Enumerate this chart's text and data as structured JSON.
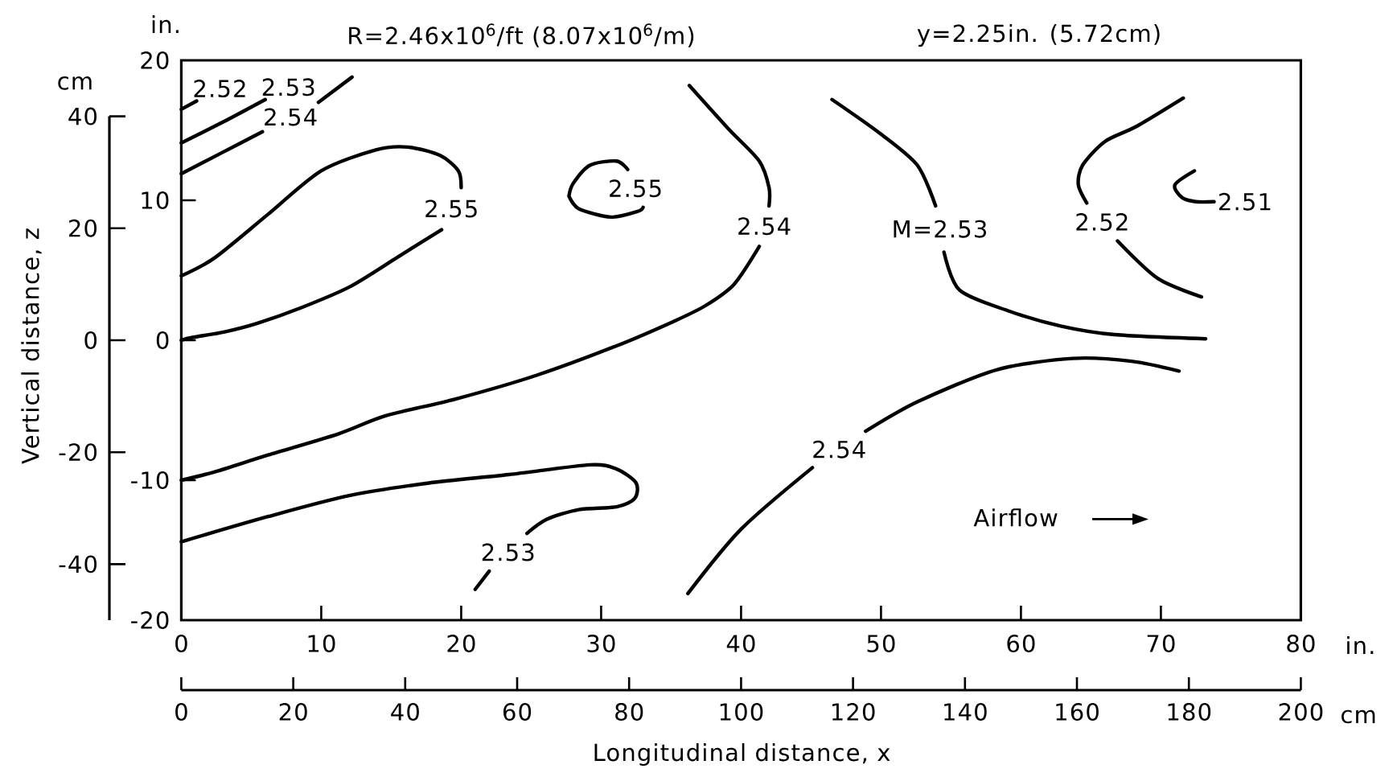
{
  "chart_data": {
    "type": "line",
    "title": "R=2.46x10$^{6}$/ft (8.07x10$^{6}$/m)",
    "subtitle": "y=2.25in. (5.72cm)",
    "xlabel": "Longitudinal distance, x",
    "y2label": "Vertical distance, z",
    "xlim": [
      0,
      80
    ],
    "xticks": [
      0,
      10,
      20,
      30,
      40,
      50,
      60,
      70,
      80
    ],
    "ylim": [
      -20,
      20
    ],
    "yticks": [
      -20,
      -10,
      0,
      10,
      20
    ],
    "x2lim": [
      0,
      200
    ],
    "x2ticks": [
      0,
      20,
      40,
      60,
      80,
      100,
      120,
      140,
      160,
      180,
      200
    ],
    "y2lim": [
      -50,
      40
    ],
    "y2ticks": [
      -40,
      -20,
      0,
      20,
      40
    ],
    "series": [
      {
        "name": "2.52",
        "color": "#000000",
        "x": [
          0,
          1.1
        ],
        "values": [
          16.5,
          17.1
        ]
      },
      {
        "name": "2.53",
        "color": "#000000",
        "x": [
          0,
          3.0,
          6.0
        ],
        "values": [
          14.1,
          15.6,
          17.2
        ]
      },
      {
        "name": "2.54",
        "color": "#000000",
        "x": [
          0,
          2.9,
          5.8,
          7.8,
          9.8,
          12.2
        ],
        "values": [
          11.9,
          13.4,
          14.9,
          null,
          17.0,
          18.8
        ]
      },
      {
        "name": "2.55",
        "color": "#000000",
        "x": [
          0,
          2.4,
          6.2,
          10.0,
          13.9,
          16.2,
          18.5,
          19.8,
          20.0,
          19.3,
          18.6,
          15.4,
          12.0,
          8.5,
          5.4,
          3.1,
          0.8,
          0
        ],
        "values": [
          4.6,
          5.9,
          9.0,
          12.1,
          13.6,
          13.8,
          13.2,
          12.1,
          10.9,
          null,
          7.9,
          5.9,
          3.8,
          2.3,
          1.2,
          0.6,
          0.2,
          0
        ]
      },
      {
        "name": "2.55",
        "color": "#000000",
        "x": [
          27.7,
          28.0,
          29.2,
          31.1,
          31.9,
          32.4,
          33.0,
          32.6,
          30.7,
          28.4,
          27.7
        ],
        "values": [
          10.3,
          11.2,
          12.5,
          12.8,
          12.2,
          null,
          9.5,
          9.2,
          8.8,
          9.4,
          10.3
        ]
      },
      {
        "name": "2.54",
        "color": "#000000",
        "x": [
          36.3,
          39.1,
          41.3,
          42.0,
          42.0,
          41.6,
          41.3,
          39.5,
          37.5,
          35.3,
          31.1,
          25.4,
          19.6,
          14.6,
          11.2,
          6.2,
          2.4,
          0
        ],
        "values": [
          18.2,
          15.1,
          12.8,
          10.9,
          9.6,
          null,
          6.7,
          4.0,
          2.5,
          1.4,
          -0.4,
          -2.5,
          -4.2,
          -5.4,
          -6.7,
          -8.2,
          -9.4,
          -10
        ]
      },
      {
        "name": "2.53",
        "color": "#000000",
        "x": [
          0,
          6.2,
          12.0,
          17.7,
          23.4,
          29.2,
          31.1,
          32.5,
          32.4,
          31.1,
          28.4,
          26.1,
          24.7,
          23.3,
          22.0,
          21.0
        ],
        "values": [
          -14.4,
          -12.6,
          -11.1,
          -10.2,
          -9.6,
          -8.9,
          -9.2,
          -10.2,
          -11.3,
          -11.9,
          -12.1,
          -12.8,
          -13.8,
          null,
          -16.5,
          -17.8
        ]
      },
      {
        "name": "2.54",
        "color": "#000000",
        "x": [
          36.2,
          40.0,
          45.1,
          47.0,
          48.9,
          52.6,
          58.3,
          63.7,
          67.9,
          71.3
        ],
        "values": [
          -18.1,
          -13.5,
          -9.1,
          null,
          -6.5,
          -4.4,
          -2.1,
          -1.3,
          -1.5,
          -2.2
        ]
      },
      {
        "name": "M=2.53",
        "color": "#000000",
        "x": [
          46.5,
          49.9,
          52.6,
          53.9,
          54.2,
          54.5,
          55.6,
          59.1,
          62.9,
          66.7,
          73.2
        ],
        "values": [
          17.2,
          14.8,
          12.5,
          9.6,
          null,
          6.3,
          3.6,
          2.1,
          1.0,
          0.4,
          0.1
        ]
      },
      {
        "name": "2.52",
        "color": "#000000",
        "x": [
          71.6,
          68.3,
          66.0,
          64.4,
          64.1,
          64.7,
          65.8,
          66.9,
          69.8,
          72.9
        ],
        "values": [
          17.3,
          15.3,
          14.2,
          12.5,
          11.1,
          9.8,
          null,
          7.1,
          4.4,
          3.1
        ]
      },
      {
        "name": "2.51",
        "color": "#000000",
        "x": [
          72.4,
          71.0,
          71.5,
          72.5,
          73.8
        ],
        "values": [
          12.1,
          11.1,
          10.2,
          9.9,
          9.9
        ]
      }
    ],
    "annotations": [
      "in.",
      "cm",
      "in.",
      "cm",
      "Airflow"
    ]
  }
}
